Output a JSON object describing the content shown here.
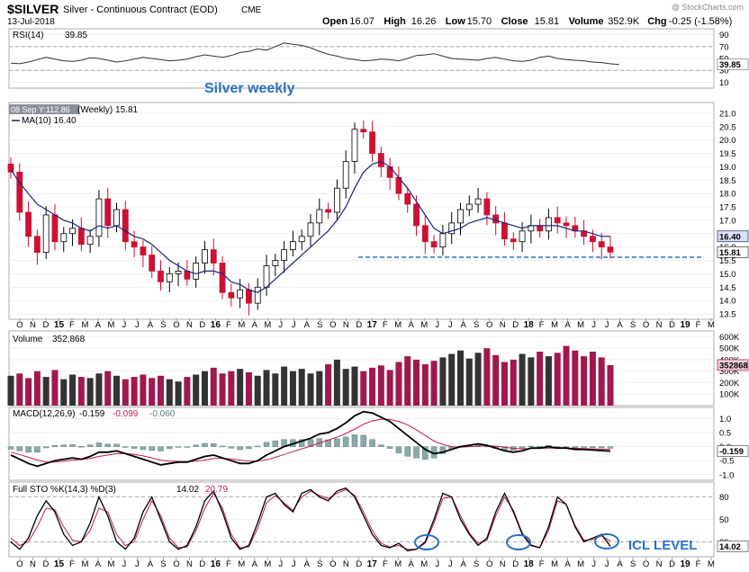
{
  "header": {
    "symbol": "$SILVER",
    "name": "Silver - Continuous Contract (EOD)",
    "exchange": "CME",
    "date": "13-Jul-2018",
    "watermark": "@ StockCharts.com",
    "ohlc": [
      {
        "label": "Open",
        "value": "16.07"
      },
      {
        "label": "High",
        "value": "16.26"
      },
      {
        "label": "Low",
        "value": "15.70"
      },
      {
        "label": "Close",
        "value": "15.81"
      },
      {
        "label": "Volume",
        "value": "352.9K"
      },
      {
        "label": "Chg",
        "value": "-0.25 (-1.58%)"
      }
    ],
    "chg_arrow": "▼"
  },
  "annotations": {
    "title": "Silver weekly",
    "icl_label": "ICL LEVEL",
    "tooltip": "08 Sep Y:112.86",
    "support_level": 15.62
  },
  "colors": {
    "up": "#000000",
    "down": "#cc1133",
    "ma": "#1a237e",
    "volume_up": "#333333",
    "volume_down": "#a01850",
    "macd": "#000000",
    "signal": "#c2185b",
    "histogram": "#8aa9aa",
    "annotation": "#2b70c4"
  },
  "chart_data": [
    {
      "type": "line",
      "panel": "RSI",
      "label": "RSI(14)",
      "current": "39.85",
      "y_ticks": [
        "90",
        "70",
        "50",
        "30",
        "10"
      ],
      "ylim": [
        0,
        100
      ],
      "reference_lines": [
        70,
        30
      ],
      "series": [
        {
          "name": "RSI(14)",
          "values": [
            42,
            41,
            44,
            48,
            52,
            49,
            46,
            45,
            47,
            51,
            50,
            47,
            44,
            46,
            49,
            52,
            50,
            48,
            46,
            47,
            49,
            53,
            56,
            54,
            52,
            55,
            60,
            62,
            66,
            64,
            70,
            76,
            74,
            72,
            68,
            62,
            57,
            54,
            50,
            48,
            46,
            47,
            49,
            48,
            46,
            50,
            55,
            56,
            58,
            54,
            50,
            49,
            48,
            47,
            50,
            52,
            49,
            46,
            45,
            47,
            52,
            54,
            50,
            48,
            47,
            46,
            44,
            43,
            41,
            39.85
          ]
        }
      ]
    },
    {
      "type": "candlestick",
      "panel": "Price",
      "label": "(Weekly) 15.81",
      "ma_label": "MA(10) 16.40",
      "ma_value": "16.40",
      "last_value": "15.81",
      "y_ticks": [
        "21.0",
        "20.5",
        "20.0",
        "19.5",
        "19.0",
        "18.5",
        "18.0",
        "17.5",
        "17.0",
        "16.5",
        "16.0",
        "15.5",
        "15.0",
        "14.5",
        "14.0",
        "13.5"
      ],
      "ylim": [
        13.3,
        21.4
      ],
      "x_labels": [
        "O",
        "N",
        "D",
        "15",
        "F",
        "M",
        "A",
        "M",
        "J",
        "J",
        "A",
        "S",
        "O",
        "N",
        "D",
        "16",
        "F",
        "M",
        "A",
        "M",
        "J",
        "J",
        "A",
        "S",
        "O",
        "N",
        "D",
        "17",
        "F",
        "M",
        "A",
        "M",
        "J",
        "J",
        "A",
        "S",
        "O",
        "N",
        "D",
        "18",
        "F",
        "M",
        "A",
        "M",
        "J",
        "J",
        "A",
        "S",
        "O",
        "N",
        "D",
        "19",
        "F",
        "M"
      ],
      "close": [
        18.8,
        17.3,
        16.4,
        15.8,
        17.2,
        16.2,
        16.5,
        16.7,
        16.1,
        16.4,
        17.8,
        16.8,
        17.4,
        16.2,
        16.0,
        15.7,
        15.1,
        14.7,
        15.0,
        15.1,
        14.8,
        15.4,
        15.9,
        15.4,
        14.3,
        14.1,
        14.4,
        13.9,
        14.5,
        15.3,
        15.5,
        15.9,
        16.2,
        16.4,
        16.9,
        17.4,
        17.3,
        18.2,
        19.2,
        20.4,
        20.3,
        19.5,
        19.0,
        18.6,
        18.0,
        17.6,
        16.8,
        16.2,
        16.0,
        16.5,
        16.9,
        17.4,
        17.6,
        17.8,
        17.2,
        16.9,
        16.3,
        16.2,
        16.6,
        16.8,
        16.6,
        17.1,
        16.9,
        16.8,
        16.6,
        16.4,
        16.2,
        16.0,
        15.81
      ],
      "high_low_range": [
        13.6,
        21.2
      ],
      "moving_average": {
        "name": "MA(10)",
        "values": [
          18.9,
          18.4,
          18.0,
          17.6,
          17.4,
          17.2,
          17.0,
          16.9,
          16.7,
          16.6,
          16.8,
          16.7,
          16.8,
          16.6,
          16.4,
          16.3,
          16.1,
          15.8,
          15.5,
          15.3,
          15.1,
          15.0,
          15.1,
          15.1,
          15.0,
          14.7,
          14.6,
          14.4,
          14.3,
          14.5,
          14.8,
          15.1,
          15.4,
          15.7,
          16.0,
          16.3,
          16.6,
          17.0,
          17.5,
          18.2,
          18.8,
          19.1,
          19.2,
          19.0,
          18.6,
          18.2,
          17.7,
          17.2,
          16.7,
          16.5,
          16.6,
          16.7,
          16.9,
          17.0,
          17.1,
          17.0,
          16.9,
          16.8,
          16.7,
          16.8,
          16.8,
          16.8,
          16.8,
          16.7,
          16.6,
          16.6,
          16.5,
          16.4,
          16.4
        ]
      }
    },
    {
      "type": "bar",
      "panel": "Volume",
      "label": "Volume",
      "current": "352,868",
      "current_short": "352868",
      "y_ticks": [
        "600K",
        "500K",
        "400K",
        "300K",
        "200K",
        "100K"
      ],
      "ylim": [
        0,
        650000
      ],
      "values": [
        260,
        280,
        240,
        300,
        250,
        310,
        230,
        270,
        250,
        240,
        280,
        300,
        260,
        230,
        250,
        270,
        240,
        260,
        230,
        210,
        250,
        270,
        300,
        330,
        280,
        300,
        320,
        290,
        260,
        310,
        280,
        340,
        300,
        320,
        280,
        300,
        360,
        400,
        320,
        340,
        300,
        330,
        350,
        310,
        380,
        430,
        400,
        360,
        390,
        420,
        450,
        480,
        410,
        460,
        500,
        440,
        380,
        400,
        450,
        420,
        470,
        430,
        460,
        520,
        480,
        430,
        470,
        420,
        352.868
      ]
    },
    {
      "type": "line",
      "panel": "MACD",
      "label": "MACD(12,26,9)",
      "values_text": [
        "-0.159",
        "-0.099",
        "-0.060"
      ],
      "y_ticks": [
        "1.0",
        "0.5",
        "0.0",
        "-0.5",
        "-1.0"
      ],
      "ylim": [
        -1.2,
        1.4
      ],
      "current": "-0.159",
      "series": [
        {
          "name": "MACD",
          "values": [
            -0.3,
            -0.45,
            -0.6,
            -0.7,
            -0.6,
            -0.5,
            -0.45,
            -0.4,
            -0.45,
            -0.35,
            -0.2,
            -0.2,
            -0.15,
            -0.25,
            -0.35,
            -0.45,
            -0.55,
            -0.65,
            -0.6,
            -0.55,
            -0.55,
            -0.45,
            -0.35,
            -0.3,
            -0.4,
            -0.5,
            -0.6,
            -0.6,
            -0.5,
            -0.3,
            -0.15,
            0.0,
            0.1,
            0.2,
            0.3,
            0.45,
            0.5,
            0.65,
            0.85,
            1.1,
            1.25,
            1.2,
            1.05,
            0.9,
            0.65,
            0.4,
            0.15,
            -0.1,
            -0.25,
            -0.2,
            -0.1,
            0.0,
            0.05,
            0.1,
            0.05,
            -0.05,
            -0.15,
            -0.2,
            -0.15,
            -0.05,
            -0.05,
            0.0,
            -0.05,
            -0.05,
            -0.1,
            -0.1,
            -0.12,
            -0.14,
            -0.159
          ]
        },
        {
          "name": "Signal",
          "values": [
            -0.2,
            -0.28,
            -0.38,
            -0.48,
            -0.55,
            -0.55,
            -0.52,
            -0.48,
            -0.46,
            -0.42,
            -0.35,
            -0.3,
            -0.25,
            -0.25,
            -0.28,
            -0.33,
            -0.4,
            -0.48,
            -0.52,
            -0.53,
            -0.54,
            -0.52,
            -0.48,
            -0.42,
            -0.42,
            -0.44,
            -0.48,
            -0.52,
            -0.52,
            -0.47,
            -0.38,
            -0.28,
            -0.18,
            -0.08,
            0.02,
            0.13,
            0.23,
            0.34,
            0.47,
            0.63,
            0.8,
            0.92,
            0.98,
            0.97,
            0.9,
            0.78,
            0.6,
            0.4,
            0.2,
            0.08,
            0.0,
            -0.02,
            0.0,
            0.02,
            0.03,
            0.02,
            -0.02,
            -0.06,
            -0.08,
            -0.07,
            -0.06,
            -0.05,
            -0.05,
            -0.05,
            -0.06,
            -0.07,
            -0.08,
            -0.09,
            -0.099
          ]
        }
      ]
    },
    {
      "type": "line",
      "panel": "STO",
      "label": "Full STO %K(14,3) %D(3)",
      "values_text": [
        "14.02",
        "20.79"
      ],
      "current": "14.02",
      "y_ticks": [
        "80",
        "50",
        "20"
      ],
      "ylim": [
        0,
        100
      ],
      "reference_lines": [
        80,
        20
      ],
      "series": [
        {
          "name": "%K",
          "values": [
            20,
            10,
            25,
            55,
            75,
            60,
            30,
            15,
            20,
            45,
            80,
            55,
            20,
            10,
            25,
            60,
            80,
            50,
            20,
            10,
            15,
            40,
            75,
            88,
            60,
            25,
            10,
            15,
            45,
            80,
            85,
            70,
            60,
            85,
            90,
            80,
            75,
            88,
            92,
            80,
            55,
            30,
            15,
            12,
            18,
            8,
            10,
            20,
            50,
            85,
            80,
            50,
            30,
            15,
            25,
            60,
            85,
            60,
            30,
            15,
            12,
            40,
            80,
            70,
            40,
            20,
            25,
            30,
            14.02
          ]
        },
        {
          "name": "%D",
          "values": [
            25,
            15,
            20,
            40,
            65,
            63,
            40,
            22,
            20,
            35,
            65,
            60,
            30,
            15,
            20,
            50,
            75,
            55,
            25,
            12,
            13,
            35,
            65,
            85,
            65,
            30,
            12,
            13,
            38,
            72,
            82,
            72,
            62,
            80,
            88,
            82,
            78,
            85,
            90,
            82,
            60,
            35,
            18,
            13,
            15,
            10,
            10,
            18,
            45,
            78,
            80,
            55,
            32,
            18,
            22,
            55,
            80,
            62,
            32,
            16,
            12,
            35,
            75,
            70,
            42,
            22,
            23,
            28,
            20.79
          ]
        }
      ],
      "x_labels": [
        "O",
        "N",
        "D",
        "15",
        "F",
        "M",
        "A",
        "M",
        "J",
        "J",
        "A",
        "S",
        "O",
        "N",
        "D",
        "16",
        "F",
        "M",
        "A",
        "M",
        "J",
        "J",
        "A",
        "S",
        "O",
        "N",
        "D",
        "17",
        "F",
        "M",
        "A",
        "M",
        "J",
        "J",
        "A",
        "S",
        "O",
        "N",
        "D",
        "18",
        "F",
        "M",
        "A",
        "M",
        "J",
        "J",
        "A",
        "S",
        "O",
        "N",
        "D",
        "19",
        "F",
        "M"
      ]
    }
  ]
}
